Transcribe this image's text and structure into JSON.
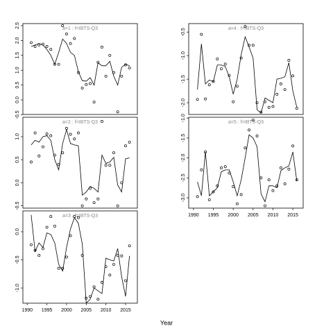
{
  "xlabel": "Year",
  "chart_data": [
    {
      "type": "line",
      "title": "a=1 : f=IBTS-Q3",
      "x": [
        1991,
        1992,
        1993,
        1994,
        1995,
        1996,
        1997,
        1998,
        1999,
        2000,
        2001,
        2002,
        2003,
        2004,
        2005,
        2006,
        2007,
        2008,
        2009,
        2010,
        2011,
        2012,
        2013,
        2014,
        2015,
        2016
      ],
      "series": [
        {
          "style": "points",
          "color": "#000000",
          "values": [
            1.93,
            1.8,
            1.85,
            1.88,
            1.8,
            1.7,
            1.2,
            1.2,
            2.5,
            2.22,
            1.9,
            2.07,
            0.92,
            0.4,
            0.52,
            0.55,
            -0.07,
            1.27,
            1.78,
            0.8,
            1.5,
            0.92,
            -0.4,
            0.8,
            1.18,
            1.08
          ]
        },
        {
          "style": "line",
          "color": "#000000",
          "values": [
            1.8,
            1.85,
            1.9,
            1.85,
            1.7,
            1.5,
            1.2,
            1.6,
            2.05,
            1.9,
            1.6,
            1.5,
            0.95,
            0.65,
            0.63,
            0.75,
            0.5,
            1.25,
            1.15,
            1.15,
            1.3,
            0.8,
            0.5,
            1.1,
            1.2,
            1.15
          ]
        }
      ],
      "xlim": [
        1988.9,
        2018.0
      ],
      "ylim": [
        -0.49,
        2.57
      ],
      "yticks": [
        {
          "value": 2.5,
          "label": "2.5"
        },
        {
          "value": 2.0,
          "label": "2.0"
        },
        {
          "value": 1.5,
          "label": "1.5"
        },
        {
          "value": 1.0,
          "label": "1.0"
        },
        {
          "value": 0.5,
          "label": "0.5"
        },
        {
          "value": 0.0,
          "label": "0.0"
        },
        {
          "value": -0.5,
          "label": "-0.5"
        }
      ]
    },
    {
      "type": "line",
      "title": "a=2 : f=IBTS-Q3",
      "x": [
        1991,
        1992,
        1993,
        1994,
        1995,
        1996,
        1997,
        1998,
        1999,
        2000,
        2001,
        2002,
        2003,
        2004,
        2005,
        2006,
        2007,
        2008,
        2009,
        2010,
        2011,
        2012,
        2013,
        2014,
        2015,
        2016
      ],
      "series": [
        {
          "style": "points",
          "color": "#000000",
          "values": [
            0.45,
            1.08,
            0.58,
            0.78,
            1.06,
            1.02,
            0.6,
            0.4,
            0.65,
            1.18,
            1.05,
            0.95,
            1.08,
            -0.5,
            -0.35,
            -0.12,
            -0.43,
            -0.35,
            1.33,
            0.38,
            0.38,
            0.65,
            -0.5,
            0.0,
            0.8,
            0.88
          ]
        },
        {
          "style": "line",
          "color": "#000000",
          "values": [
            0.82,
            0.92,
            0.88,
            1.0,
            1.02,
            0.92,
            0.5,
            0.28,
            0.85,
            1.15,
            0.85,
            0.82,
            0.8,
            -0.27,
            -0.2,
            -0.08,
            -0.12,
            -0.2,
            0.6,
            0.42,
            0.45,
            0.55,
            -0.05,
            -0.2,
            0.52,
            0.54
          ]
        }
      ],
      "xlim": [
        1988.9,
        2018.0
      ],
      "ylim": [
        -0.55,
        1.42
      ],
      "yticks": [
        {
          "value": 1.0,
          "label": "1.0"
        },
        {
          "value": 0.5,
          "label": "0.5"
        },
        {
          "value": 0.0,
          "label": "0.0"
        },
        {
          "value": -0.5,
          "label": "-0.5"
        }
      ]
    },
    {
      "type": "line",
      "title": "a=3 : f=IBTS-Q3",
      "x": [
        1991,
        1992,
        1993,
        1994,
        1995,
        1996,
        1997,
        1998,
        1999,
        2000,
        2001,
        2002,
        2003,
        2004,
        2005,
        2006,
        2007,
        2008,
        2009,
        2010,
        2011,
        2012,
        2013,
        2014,
        2015,
        2016
      ],
      "series": [
        {
          "style": "points",
          "color": "#000000",
          "values": [
            -0.23,
            -0.33,
            -0.42,
            -0.3,
            0.08,
            0.27,
            0.1,
            -0.65,
            -0.65,
            -0.45,
            -0.07,
            0.27,
            0.25,
            -0.42,
            -1.18,
            -1.15,
            -0.98,
            -1.2,
            -0.9,
            -0.62,
            -0.77,
            -0.58,
            -0.42,
            -0.43,
            -0.87,
            -0.25
          ]
        },
        {
          "style": "line",
          "color": "#000000",
          "values": [
            0.3,
            -0.35,
            -0.2,
            -0.28,
            -0.02,
            -0.05,
            -0.2,
            -0.58,
            -0.7,
            -0.28,
            0.05,
            0.25,
            0.15,
            -0.22,
            -1.27,
            -1.2,
            -1.0,
            -1.05,
            -1.1,
            -0.47,
            -0.5,
            -0.52,
            -0.3,
            -0.8,
            -1.15,
            -0.43
          ]
        }
      ],
      "xlim": [
        1988.9,
        2018.0
      ],
      "ylim": [
        -1.27,
        0.37
      ],
      "xticks": [
        1990,
        1995,
        2000,
        2005,
        2010,
        2015
      ],
      "yticks": [
        {
          "value": 0.0,
          "label": "0.0"
        },
        {
          "value": -0.5,
          "label": "-0.5"
        },
        {
          "value": -1.0,
          "label": "-1.0"
        }
      ]
    },
    {
      "type": "line",
      "title": "a=4 : f=IBTS-Q3",
      "x": [
        1991,
        1992,
        1993,
        1994,
        1995,
        1996,
        1997,
        1998,
        1999,
        2000,
        2001,
        2002,
        2003,
        2004,
        2005,
        2006,
        2007,
        2008,
        2009,
        2010,
        2011,
        2012,
        2013,
        2014,
        2015,
        2016
      ],
      "series": [
        {
          "style": "points",
          "color": "#000000",
          "values": [
            -1.93,
            -0.55,
            -1.92,
            -1.62,
            -1.55,
            -1.07,
            -1.28,
            -1.18,
            -1.42,
            -1.98,
            -1.65,
            -1.05,
            -0.38,
            -0.78,
            -0.78,
            -2.0,
            -2.2,
            -1.98,
            -2.1,
            -2.08,
            -1.82,
            -1.6,
            -1.72,
            -1.1,
            -1.43,
            -2.12
          ]
        },
        {
          "style": "line",
          "color": "#000000",
          "values": [
            -1.72,
            -0.75,
            -1.6,
            -1.52,
            -1.55,
            -1.2,
            -1.2,
            -1.23,
            -1.45,
            -1.82,
            -1.5,
            -0.98,
            -0.6,
            -0.82,
            -1.05,
            -2.15,
            -2.22,
            -1.9,
            -1.95,
            -2.0,
            -1.5,
            -1.48,
            -1.45,
            -1.15,
            -1.75,
            -2.1
          ]
        }
      ],
      "xlim": [
        1988.8,
        2017.6
      ],
      "ylim": [
        -2.25,
        -0.32
      ],
      "yticks": [
        {
          "value": -0.5,
          "label": "-0.5"
        },
        {
          "value": -1.0,
          "label": "-1.0"
        },
        {
          "value": -1.5,
          "label": "-1.5"
        },
        {
          "value": -2.0,
          "label": "-2.0"
        }
      ]
    },
    {
      "type": "line",
      "title": "a=5 : f=IBTS-Q3",
      "x": [
        1991,
        1992,
        1993,
        1994,
        1995,
        1996,
        1997,
        1998,
        1999,
        2000,
        2001,
        2002,
        2003,
        2004,
        2005,
        2006,
        2007,
        2008,
        2009,
        2010,
        2011,
        2012,
        2013,
        2014,
        2015,
        2016
      ],
      "series": [
        {
          "style": "points",
          "color": "#000000",
          "values": [
            -2.97,
            -2.3,
            -1.85,
            -3.05,
            -2.85,
            -2.7,
            -2.25,
            -2.22,
            -2.38,
            -2.72,
            -3.15,
            -2.92,
            -1.75,
            -1.3,
            -1.05,
            -1.45,
            -2.5,
            -3.2,
            -2.55,
            -2.82,
            -2.7,
            -2.25,
            -2.65,
            -2.28,
            -1.7,
            -2.55
          ]
        },
        {
          "style": "line",
          "color": "#000000",
          "values": [
            -2.6,
            -2.95,
            -1.85,
            -2.95,
            -2.85,
            -2.75,
            -2.35,
            -2.3,
            -2.3,
            -2.6,
            -2.95,
            -2.55,
            -2.0,
            -1.42,
            -1.5,
            -1.72,
            -2.9,
            -3.1,
            -2.7,
            -2.7,
            -2.75,
            -2.32,
            -2.25,
            -2.2,
            -1.85,
            -2.58
          ]
        }
      ],
      "xlim": [
        1988.8,
        2017.6
      ],
      "ylim": [
        -3.26,
        -0.98
      ],
      "xticks": [
        1990,
        1995,
        2000,
        2005,
        2010,
        2015
      ],
      "yticks": [
        {
          "value": -1.0,
          "label": "-1.0"
        },
        {
          "value": -1.5,
          "label": "-1.5"
        },
        {
          "value": -2.0,
          "label": "-2.0"
        },
        {
          "value": -2.5,
          "label": "-2.5"
        },
        {
          "value": -3.0,
          "label": "-3.0"
        }
      ]
    }
  ]
}
